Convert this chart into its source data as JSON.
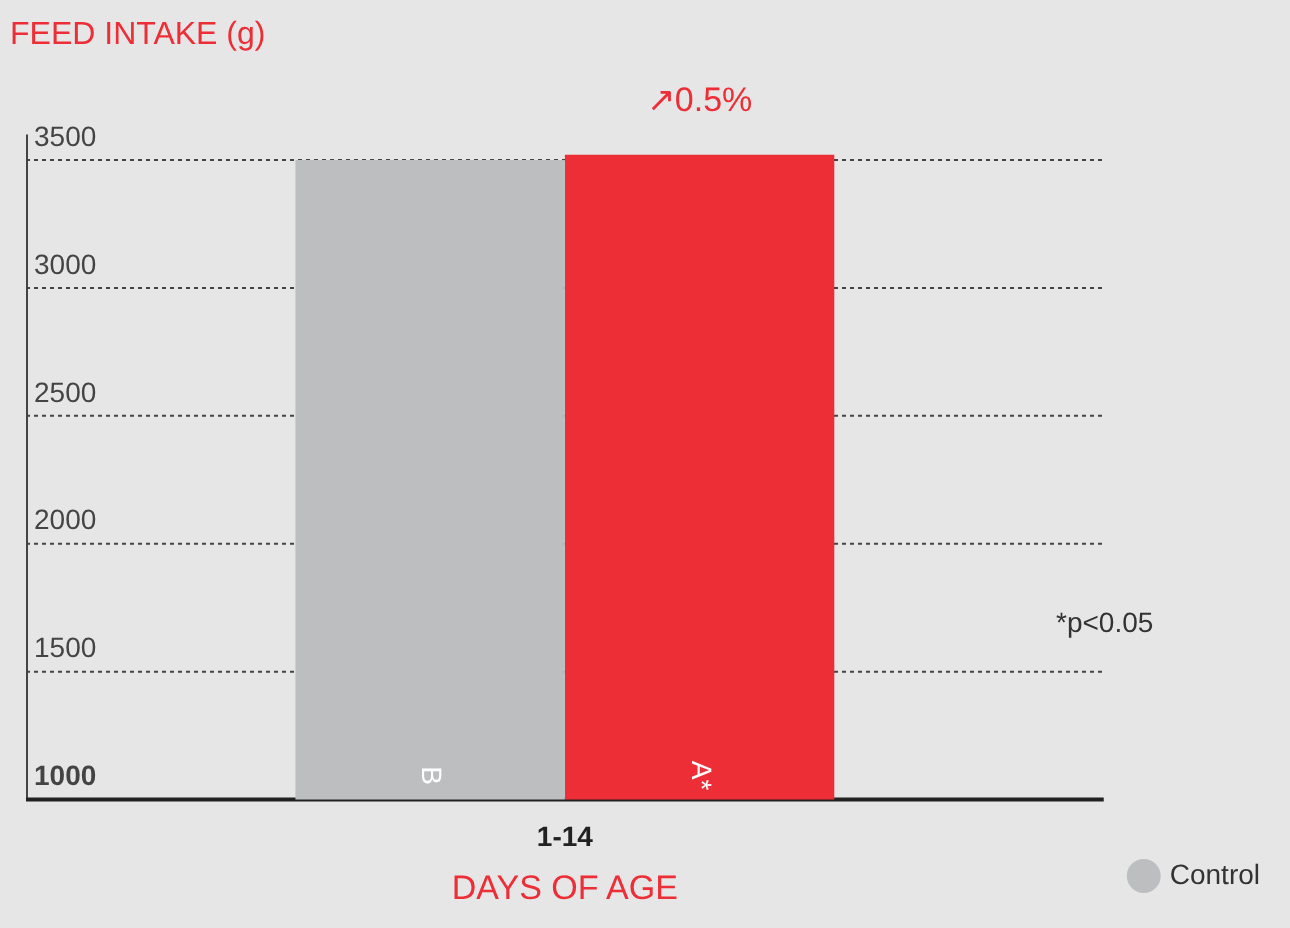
{
  "chart_data": {
    "type": "bar",
    "ylabel": "FEED INTAKE (g)",
    "xlabel": "DAYS OF AGE",
    "categories": [
      "1-14"
    ],
    "series": [
      {
        "name": "Control",
        "color": "#bdbec0",
        "values": [
          3500
        ]
      },
      {
        "color": "#ee2e37",
        "values": [
          3520
        ]
      }
    ],
    "ylim": [
      1000,
      3600
    ],
    "yticks": [
      1000,
      1500,
      2000,
      2500,
      3000,
      3500
    ],
    "grid": "y",
    "legend": "right",
    "annotations": [
      "↗0.5%",
      "B",
      "A*",
      "*p<0.05"
    ]
  }
}
